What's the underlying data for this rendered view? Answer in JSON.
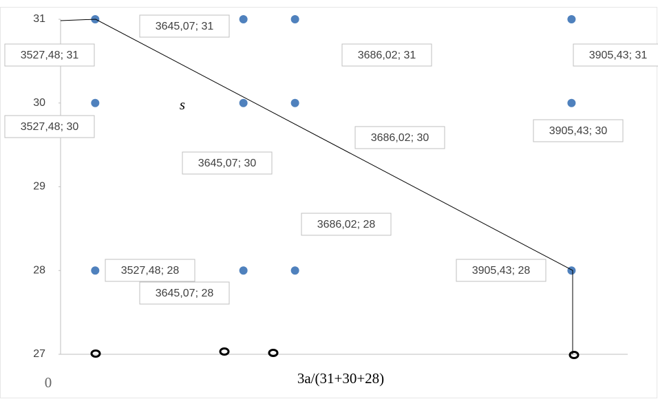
{
  "chart_data": {
    "type": "scatter",
    "x": [
      3527.48,
      3527.48,
      3527.48,
      3645.07,
      3645.07,
      3645.07,
      3686.02,
      3686.02,
      3686.02,
      3905.43,
      3905.43,
      3905.43
    ],
    "y": [
      31,
      30,
      28,
      31,
      30,
      28,
      31,
      30,
      28,
      31,
      30,
      28
    ],
    "value_labels": [
      "3527,48; 31",
      "3527,48; 30",
      "3527,48; 28",
      "3645,07; 31",
      "3645,07; 30",
      "3645,07; 28",
      "3686,02; 31",
      "3686,02; 30",
      "3686,02; 28",
      "3905,43; 31",
      "3905,43; 30",
      "3905,43; 28"
    ],
    "color": "#4f81bd",
    "xlim": [
      3500,
      3950
    ],
    "ylim": [
      27,
      31
    ],
    "yticks": [
      27,
      28,
      29,
      30,
      31
    ],
    "annotations": [
      "0",
      "3a/(31+30+28)",
      "s"
    ]
  }
}
